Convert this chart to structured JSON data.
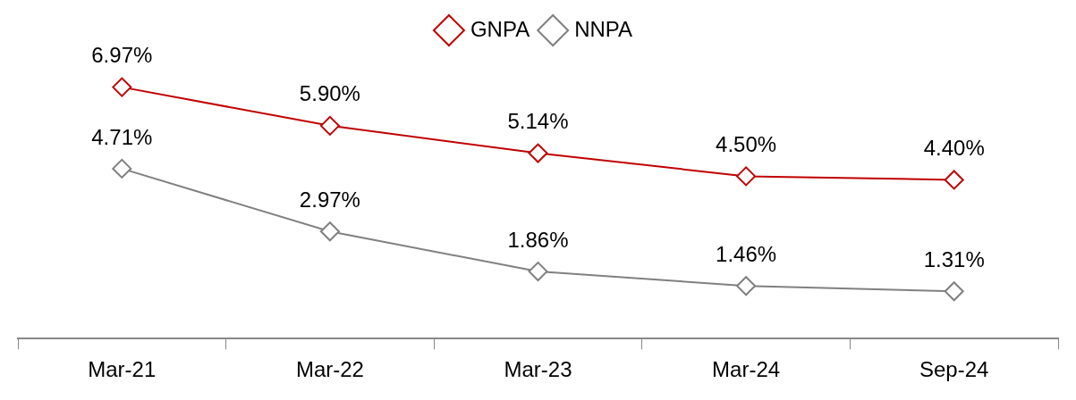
{
  "chart_data": {
    "type": "line",
    "categories": [
      "Mar-21",
      "Mar-22",
      "Mar-23",
      "Mar-24",
      "Sep-24"
    ],
    "series": [
      {
        "name": "GNPA",
        "color": "#c00000",
        "values": [
          6.97,
          5.9,
          5.14,
          4.5,
          4.4
        ],
        "value_labels": [
          "6.97%",
          "5.90%",
          "5.14%",
          "4.50%",
          "4.40%"
        ]
      },
      {
        "name": "NNPA",
        "color": "#808080",
        "values": [
          4.71,
          2.97,
          1.86,
          1.46,
          1.31
        ],
        "value_labels": [
          "4.71%",
          "2.97%",
          "1.86%",
          "1.46%",
          "1.31%"
        ]
      }
    ],
    "marker": "diamond",
    "line_style": "solid",
    "legend": "top",
    "grid": false
  }
}
